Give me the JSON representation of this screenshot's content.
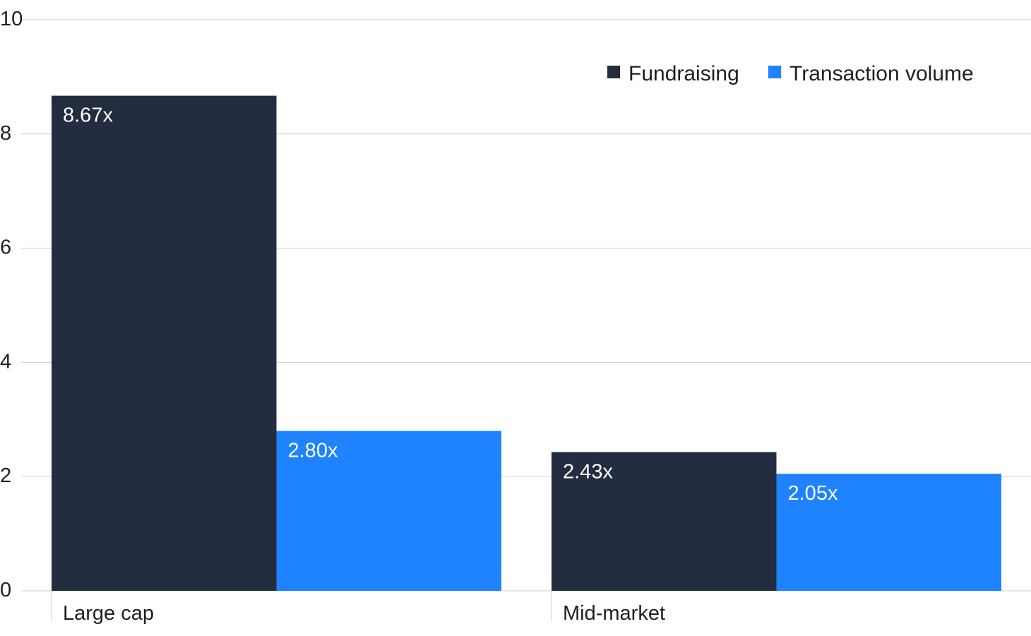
{
  "chart_data": {
    "type": "bar",
    "categories": [
      "Large cap",
      "Mid-market"
    ],
    "series": [
      {
        "name": "Fundraising",
        "values": [
          8.67,
          2.43
        ],
        "labels": [
          "8.67x",
          "2.43x"
        ],
        "color": "#242d3f"
      },
      {
        "name": "Transaction volume",
        "values": [
          2.8,
          2.05
        ],
        "labels": [
          "2.80x",
          "2.05x"
        ],
        "color": "#1f82ff"
      }
    ],
    "y_ticks": [
      "0",
      "2",
      "4",
      "6",
      "8",
      "10"
    ],
    "ylim": [
      0,
      10
    ],
    "grid": true,
    "legend_position": "top-right",
    "title": "",
    "xlabel": "",
    "ylabel": ""
  }
}
